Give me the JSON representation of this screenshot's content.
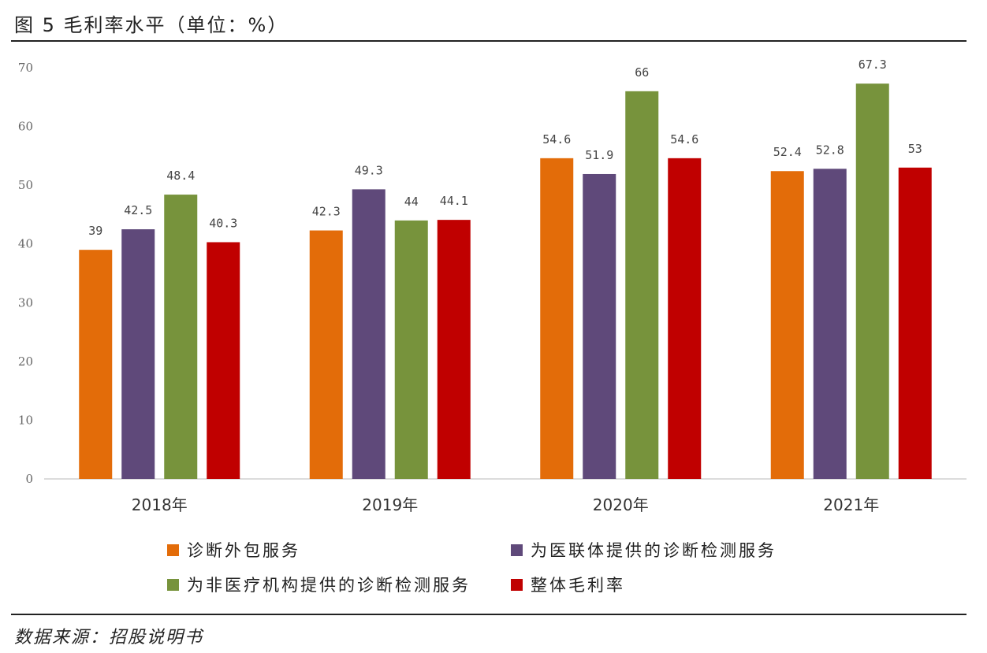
{
  "title": "图 5 毛利率水平（单位：%）",
  "source": "数据来源：招股说明书",
  "colors": {
    "orange": "#E36C09",
    "purple": "#5F497A",
    "green": "#77933C",
    "red": "#C00000"
  },
  "chart_data": {
    "type": "bar",
    "categories": [
      "2018年",
      "2019年",
      "2020年",
      "2021年"
    ],
    "series": [
      {
        "name": "诊断外包服务",
        "color": "#E36C09",
        "values": [
          39,
          42.3,
          54.6,
          52.4
        ],
        "labels": [
          "39",
          "42.3",
          "54.6",
          "52.4"
        ]
      },
      {
        "name": "为医联体提供的诊断检测服务",
        "color": "#5F497A",
        "values": [
          42.5,
          49.3,
          51.9,
          52.8
        ],
        "labels": [
          "42.5",
          "49.3",
          "51.9",
          "52.8"
        ]
      },
      {
        "name": "为非医疗机构提供的诊断检测服务",
        "color": "#77933C",
        "values": [
          48.4,
          44,
          66,
          67.3
        ],
        "labels": [
          "48.4",
          "44",
          "66",
          "67.3"
        ]
      },
      {
        "name": "整体毛利率",
        "color": "#C00000",
        "values": [
          40.3,
          44.1,
          54.6,
          53
        ],
        "labels": [
          "40.3",
          "44.1",
          "54.6",
          "53"
        ]
      }
    ],
    "ylim": [
      0,
      70
    ],
    "yticks": [
      "0",
      "10",
      "20",
      "30",
      "40",
      "50",
      "60",
      "70"
    ],
    "grid": false,
    "legend_position": "bottom"
  }
}
